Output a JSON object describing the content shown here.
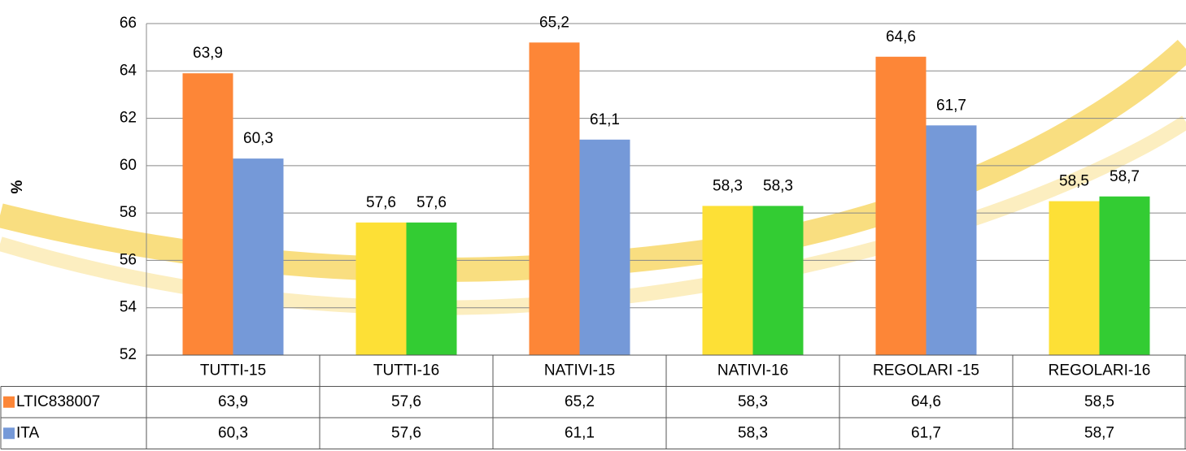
{
  "chart_data": {
    "type": "bar",
    "y_label": "%",
    "categories": [
      "TUTTI-15",
      "TUTTI-16",
      "NATIVI-15",
      "NATIVI-16",
      "REGOLARI -15",
      "REGOLARI-16"
    ],
    "series": [
      {
        "name": "LTIC838007",
        "color": "#fd8637",
        "colors": [
          "#fd8637",
          "#fde036",
          "#fd8637",
          "#fde036",
          "#fd8637",
          "#fde036"
        ],
        "values": [
          63.9,
          57.6,
          65.2,
          58.3,
          64.6,
          58.5
        ],
        "value_labels": [
          "63,9",
          "57,6",
          "65,2",
          "58,3",
          "64,6",
          "58,5"
        ]
      },
      {
        "name": "ITA",
        "color": "#7599d8",
        "colors": [
          "#7599d8",
          "#33cc33",
          "#7599d8",
          "#33cc33",
          "#7599d8",
          "#33cc33"
        ],
        "values": [
          60.3,
          57.6,
          61.1,
          58.3,
          61.7,
          58.7
        ],
        "value_labels": [
          "60,3",
          "57,6",
          "61,1",
          "58,3",
          "61,7",
          "58,7"
        ]
      }
    ],
    "ylim": [
      52,
      66
    ],
    "yticks": [
      52,
      54,
      56,
      58,
      60,
      62,
      64,
      66
    ],
    "grid": true,
    "data_table": true
  }
}
